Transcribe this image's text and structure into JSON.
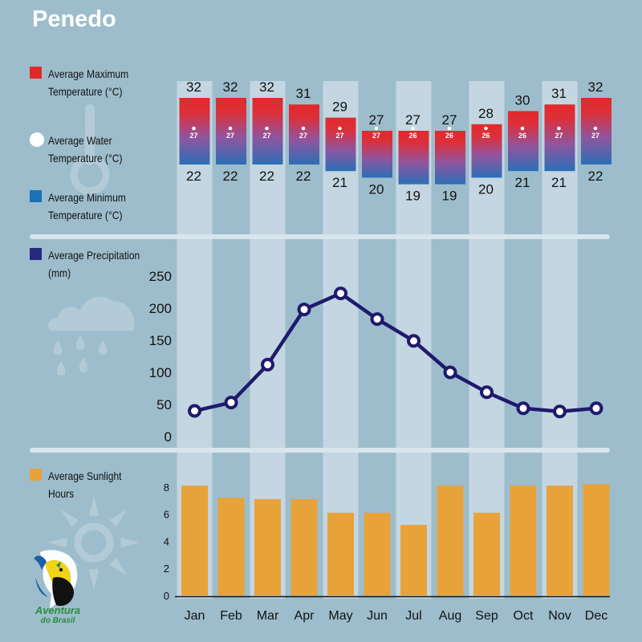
{
  "title": "Penedo",
  "legend": {
    "max_temp": "Average Maximum Temperature (°C)",
    "water_temp": "Average Water Temperature (°C)",
    "min_temp": "Average Minimum Temperature (°C)",
    "precip": "Average Precipitation (mm)",
    "sun": "Average Sunlight Hours"
  },
  "logo": {
    "line1": "Aventura",
    "line2": "do Brasil"
  },
  "colors": {
    "background": "#9dbdcc",
    "band": "#c3d6e1",
    "max_temp": "#e02a2a",
    "min_temp": "#1c70b8",
    "water": "#ffffff",
    "precip": "#1f1a6e",
    "sun": "#e8a23a"
  },
  "chart_data": {
    "type": "mixed",
    "categories": [
      "Jan",
      "Feb",
      "Mar",
      "Apr",
      "May",
      "Jun",
      "Jul",
      "Aug",
      "Sep",
      "Oct",
      "Nov",
      "Dec"
    ],
    "max_temperature": [
      32,
      32,
      32,
      31,
      29,
      27,
      27,
      27,
      28,
      30,
      31,
      32
    ],
    "water_temperature": [
      27,
      27,
      27,
      27,
      27,
      27,
      26,
      26,
      26,
      26,
      27,
      27
    ],
    "min_temperature": [
      22,
      22,
      22,
      22,
      21,
      20,
      19,
      19,
      20,
      21,
      21,
      22
    ],
    "precipitation": {
      "values": [
        40,
        53,
        112,
        198,
        223,
        183,
        149,
        100,
        69,
        44,
        39,
        44
      ],
      "ticks": [
        0,
        50,
        100,
        150,
        200,
        250
      ],
      "ylim": [
        0,
        250
      ]
    },
    "sunlight": {
      "values": [
        8.1,
        7.2,
        7.1,
        7.1,
        6.1,
        6.1,
        5.2,
        8.1,
        6.1,
        8.1,
        8.1,
        8.2
      ],
      "ticks": [
        0,
        2,
        4,
        6,
        8
      ],
      "ylim": [
        0,
        8
      ]
    }
  }
}
